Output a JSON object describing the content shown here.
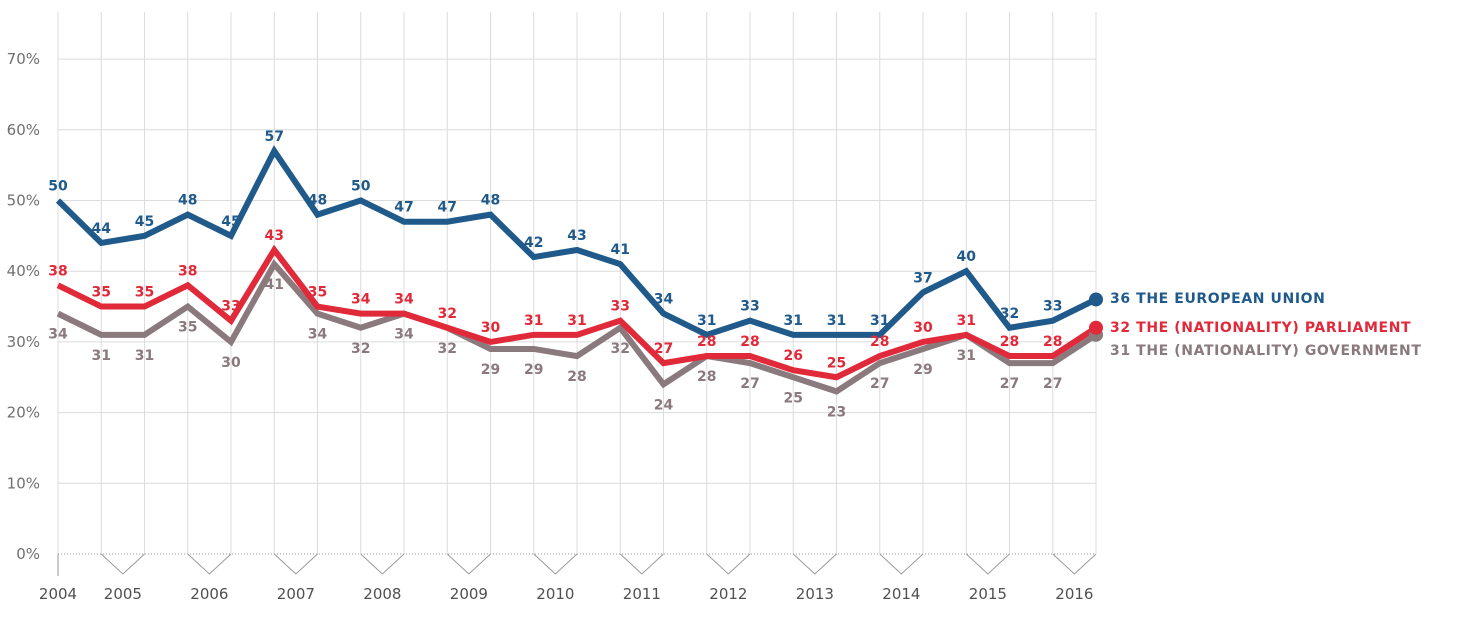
{
  "chart_data": {
    "type": "line",
    "title": "",
    "xlabel": "",
    "ylabel": "",
    "ylim": [
      0,
      75
    ],
    "y_ticks": [
      "0%",
      "10%",
      "20%",
      "30%",
      "40%",
      "50%",
      "60%",
      "70%"
    ],
    "year_labels": [
      "2004",
      "2005",
      "2006",
      "2007",
      "2008",
      "2009",
      "2010",
      "2011",
      "2012",
      "2013",
      "2014",
      "2015",
      "2016"
    ],
    "grid": true,
    "legend": "right end labels",
    "series": [
      {
        "name": "THE EUROPEAN UNION",
        "end_value": "36",
        "color": "#1F5A8B",
        "values": [
          50,
          44,
          45,
          48,
          45,
          57,
          48,
          50,
          47,
          47,
          48,
          42,
          43,
          41,
          34,
          31,
          33,
          31,
          31,
          31,
          37,
          40,
          32,
          33,
          36
        ]
      },
      {
        "name": "THE (NATIONALITY) PARLIAMENT",
        "end_value": "32",
        "color": "#E02A3A",
        "values": [
          38,
          35,
          35,
          38,
          33,
          43,
          35,
          34,
          34,
          32,
          30,
          31,
          31,
          33,
          27,
          28,
          28,
          26,
          25,
          28,
          30,
          31,
          28,
          28,
          32
        ]
      },
      {
        "name": "THE (NATIONALITY) GOVERNMENT",
        "end_value": "31",
        "color": "#8A7A7E",
        "values": [
          34,
          31,
          31,
          35,
          30,
          41,
          34,
          32,
          34,
          32,
          29,
          29,
          28,
          32,
          24,
          28,
          27,
          25,
          23,
          27,
          29,
          31,
          27,
          27,
          31
        ]
      }
    ]
  }
}
